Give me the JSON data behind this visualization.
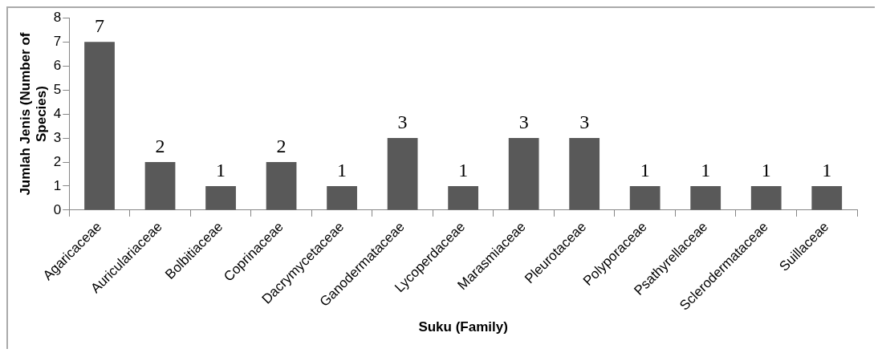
{
  "chart_data": {
    "type": "bar",
    "xlabel": "Suku (Family)",
    "ylabel": "Jumlah Jenis (Number of Species)",
    "categories": [
      "Agaricaceae",
      "Auriculariaceae",
      "Bolbitiaceae",
      "Coprinaceae",
      "Dacrymycetaceae",
      "Ganodermataceae",
      "Lycoperdaceae",
      "Marasmiaceae",
      "Pleurotaceae",
      "Polyporaceae",
      "Psathyrellaceae",
      "Sclerodermataceae",
      "Suillaceae"
    ],
    "values": [
      7,
      2,
      1,
      2,
      1,
      3,
      1,
      3,
      3,
      1,
      1,
      1,
      1
    ],
    "color": "#595959",
    "ylim": [
      0,
      8
    ],
    "yticks": [
      0,
      1,
      2,
      3,
      4,
      5,
      6,
      7,
      8
    ],
    "grid": false,
    "legend": false,
    "data_labels": true
  }
}
